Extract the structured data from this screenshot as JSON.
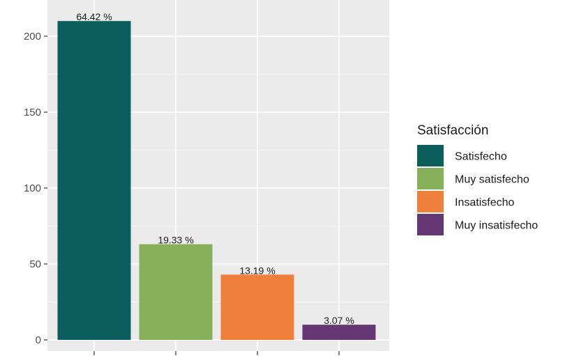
{
  "chart_data": {
    "type": "bar",
    "title": "",
    "xlabel": "",
    "ylabel": "",
    "categories": [
      "Satisfecho",
      "Muy satisfecho",
      "Insatisfecho",
      "Muy insatisfecho"
    ],
    "values": [
      210,
      63,
      43,
      10
    ],
    "data_labels": [
      "64.42 %",
      "19.33 %",
      "13.19 %",
      "3.07 %"
    ],
    "colors": [
      "#0b5e5c",
      "#86b05a",
      "#ef803b",
      "#653772"
    ],
    "ylim": [
      0,
      217
    ],
    "yticks": [
      0,
      50,
      100,
      150,
      200
    ],
    "x_tick_labels_shown": false,
    "grid": true,
    "legend": {
      "title": "Satisfacción",
      "position": "right",
      "entries": [
        "Satisfecho",
        "Muy satisfecho",
        "Insatisfecho",
        "Muy insatisfecho"
      ]
    }
  }
}
